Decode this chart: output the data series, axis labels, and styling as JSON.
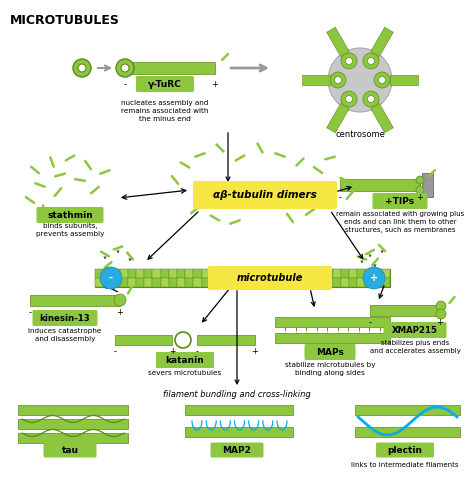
{
  "title": "MICROTUBULES",
  "bg_color": "#ffffff",
  "green": "#8dc63f",
  "green_dark": "#5a8a1a",
  "green_mid": "#6aaa20",
  "label_bg": "#8dc63f",
  "yellow_bg": "#f5e642",
  "blue_dot": "#29abe2",
  "gray_centrosome": "#c8c8c8",
  "gray_wall": "#999999",
  "teal": "#00aeef",
  "descriptions": {
    "gamma_turc": "nucleates assembly and\nremains associated with\nthe minus end",
    "stathmin": "binds subunits,\nprevents assembly",
    "tips": "remain associated with growing plus\nends and can link them to other\nstructures, such as membranes",
    "kinesin": "induces catastrophe\nand disassembly",
    "katanin": "severs microtubules",
    "maps": "stabilize microtubules by\nbinding along sides",
    "xmap": "stabilizes plus ends\nand accelerates assembly",
    "bottom": "filament bundling and cross-linking",
    "plectin_sub": "links to intermediate filaments"
  }
}
